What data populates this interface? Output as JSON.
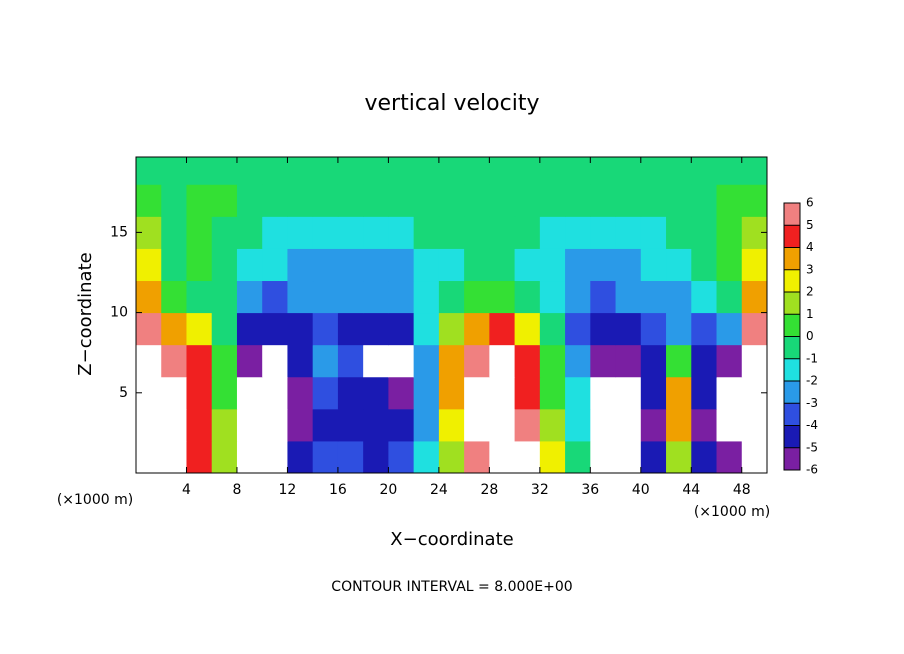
{
  "chart_data": {
    "type": "heatmap",
    "title": "vertical velocity",
    "x_label": "X−coordinate",
    "y_label": "Z−coordinate",
    "x_unit": "(×1000 m)",
    "x_unit_right": "(×1000 m)",
    "note": "CONTOUR INTERVAL = 8.000E+00",
    "xlim": [
      0,
      50
    ],
    "ylim": [
      0,
      19.7
    ],
    "xticks": [
      4,
      8,
      12,
      16,
      20,
      24,
      28,
      32,
      36,
      40,
      44,
      48
    ],
    "yticks": [
      5,
      10,
      15
    ],
    "x": [
      1,
      3,
      5,
      7,
      9,
      11,
      13,
      15,
      17,
      19,
      21,
      23,
      25,
      27,
      29,
      31,
      33,
      35,
      37,
      39,
      41,
      43,
      45,
      47,
      49
    ],
    "y": [
      1,
      3,
      5,
      7,
      9,
      11,
      13,
      15,
      17,
      19
    ],
    "values": [
      [
        8,
        8,
        5,
        2,
        -7,
        -7,
        -4,
        -3,
        -3,
        -4,
        -3,
        -1,
        2,
        6,
        7,
        7,
        3,
        0,
        -7,
        -7,
        -4,
        2,
        -4,
        -5,
        7
      ],
      [
        7,
        8,
        5,
        2,
        -7,
        -7,
        -5,
        -4,
        -4,
        -4,
        -4,
        -2,
        3,
        7,
        7,
        6,
        2,
        -1,
        -7,
        -7,
        -5,
        4,
        -5,
        -7,
        8
      ],
      [
        7,
        8,
        5,
        1,
        -7,
        -7,
        -5,
        -3,
        -4,
        -4,
        -5,
        -2,
        4,
        7,
        8,
        5,
        1,
        -1,
        -7,
        -7,
        -4,
        4,
        -4,
        -7,
        8
      ],
      [
        7,
        6,
        5,
        1,
        -6,
        -7,
        -4,
        -2,
        -3,
        -7,
        -7,
        -2,
        4,
        6,
        7,
        5,
        1,
        -2,
        -6,
        -6,
        -4,
        1,
        -4,
        -5,
        7
      ],
      [
        6,
        4,
        3,
        0,
        -4,
        -4,
        -4,
        -3,
        -4,
        -4,
        -4,
        -1,
        2,
        4,
        5,
        3,
        0,
        -3,
        -4,
        -4,
        -3,
        -2,
        -3,
        -2,
        6
      ],
      [
        4,
        1,
        0,
        0,
        -2,
        -3,
        -2,
        -2,
        -2,
        -2,
        -2,
        -1,
        0,
        1,
        1,
        0,
        -1,
        -2,
        -3,
        -2,
        -2,
        -2,
        -1,
        0,
        4
      ],
      [
        3,
        0,
        1,
        0,
        -1,
        -1,
        -2,
        -2,
        -2,
        -2,
        -2,
        -1,
        -1,
        0,
        0,
        -1,
        -1,
        -2,
        -2,
        -2,
        -1,
        -1,
        0,
        1,
        3
      ],
      [
        2,
        0,
        1,
        0,
        0,
        -1,
        -1,
        -1,
        -1,
        -1,
        -1,
        0,
        0,
        0,
        0,
        0,
        -1,
        -1,
        -1,
        -1,
        -1,
        0,
        0,
        1,
        2
      ],
      [
        1,
        0,
        1,
        1,
        0,
        0,
        0,
        0,
        0,
        0,
        0,
        0,
        0,
        0,
        0,
        0,
        0,
        0,
        0,
        0,
        0,
        0,
        0,
        1,
        1
      ],
      [
        0,
        0,
        0,
        0,
        0,
        0,
        0,
        0,
        0,
        0,
        0,
        0,
        0,
        0,
        0,
        0,
        0,
        0,
        0,
        0,
        0,
        0,
        0,
        0,
        0
      ]
    ],
    "levels": [
      -6,
      -5,
      -4,
      -3,
      -2,
      -1,
      0,
      1,
      2,
      3,
      4,
      5,
      6
    ],
    "colors": [
      "#7a1fa2",
      "#1a1ab4",
      "#2f4fe0",
      "#2a9ae8",
      "#1fe0e0",
      "#18d878",
      "#34e034",
      "#a0e020",
      "#f0f000",
      "#f0a000",
      "#f02020",
      "#f08080"
    ],
    "out_of_range_color": "#ffffff"
  }
}
